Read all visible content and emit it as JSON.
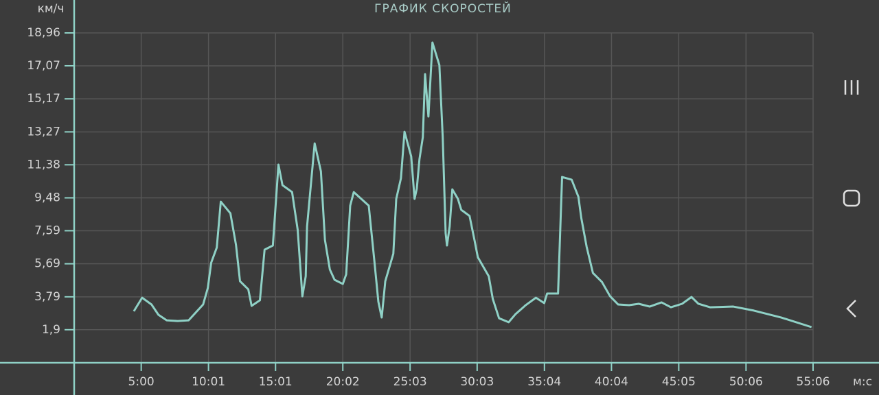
{
  "chart_data": {
    "type": "line",
    "title": "ГРАФИК СКОРОСТЕЙ",
    "y_label": "км/ч",
    "x_label": "м:с",
    "color": "#8fd1c6",
    "grid": true,
    "xlim": [
      0,
      3306
    ],
    "ylim": [
      0,
      18.96
    ],
    "xticks": [
      {
        "value": 300,
        "label": "5:00"
      },
      {
        "value": 601,
        "label": "10:01"
      },
      {
        "value": 901,
        "label": "15:01"
      },
      {
        "value": 1202,
        "label": "20:02"
      },
      {
        "value": 1503,
        "label": "25:03"
      },
      {
        "value": 1803,
        "label": "30:03"
      },
      {
        "value": 2104,
        "label": "35:04"
      },
      {
        "value": 2404,
        "label": "40:04"
      },
      {
        "value": 2705,
        "label": "45:05"
      },
      {
        "value": 3006,
        "label": "50:06"
      },
      {
        "value": 3306,
        "label": "55:06"
      }
    ],
    "yticks": [
      {
        "value": 1.9,
        "label": "1,9"
      },
      {
        "value": 3.79,
        "label": "3,79"
      },
      {
        "value": 5.69,
        "label": "5,69"
      },
      {
        "value": 7.59,
        "label": "7,59"
      },
      {
        "value": 9.48,
        "label": "9,48"
      },
      {
        "value": 11.38,
        "label": "11,38"
      },
      {
        "value": 13.27,
        "label": "13,27"
      },
      {
        "value": 15.17,
        "label": "15,17"
      },
      {
        "value": 17.07,
        "label": "17,07"
      },
      {
        "value": 18.96,
        "label": "18,96"
      }
    ],
    "x": [
      267,
      304,
      346,
      377,
      414,
      463,
      512,
      577,
      598,
      613,
      638,
      656,
      699,
      724,
      742,
      779,
      794,
      831,
      852,
      889,
      914,
      932,
      975,
      1000,
      1021,
      1036,
      1042,
      1076,
      1104,
      1122,
      1144,
      1165,
      1202,
      1217,
      1235,
      1251,
      1318,
      1343,
      1361,
      1376,
      1392,
      1428,
      1441,
      1462,
      1478,
      1508,
      1523,
      1533,
      1545,
      1560,
      1570,
      1585,
      1603,
      1634,
      1649,
      1662,
      1668,
      1680,
      1692,
      1717,
      1732,
      1769,
      1791,
      1806,
      1855,
      1873,
      1901,
      1944,
      1975,
      2020,
      2066,
      2103,
      2116,
      2165,
      2183,
      2226,
      2256,
      2269,
      2293,
      2321,
      2361,
      2398,
      2434,
      2483,
      2526,
      2575,
      2628,
      2670,
      2720,
      2762,
      2793,
      2845,
      2949,
      3041,
      3164,
      3299
    ],
    "values": [
      2.96,
      3.74,
      3.35,
      2.76,
      2.44,
      2.4,
      2.44,
      3.35,
      4.3,
      5.75,
      6.62,
      9.26,
      8.59,
      6.78,
      4.69,
      4.22,
      3.27,
      3.59,
      6.5,
      6.74,
      11.39,
      10.21,
      9.81,
      7.65,
      3.82,
      4.97,
      7.84,
      12.61,
      11.0,
      7.06,
      5.36,
      4.77,
      4.53,
      5.08,
      9.03,
      9.81,
      9.03,
      5.87,
      3.51,
      2.6,
      4.69,
      6.27,
      9.42,
      10.6,
      13.28,
      11.86,
      9.42,
      10.01,
      11.71,
      12.97,
      16.59,
      14.15,
      18.41,
      17.11,
      12.97,
      7.45,
      6.74,
      7.84,
      9.97,
      9.42,
      8.79,
      8.44,
      7.06,
      6.07,
      4.97,
      3.67,
      2.56,
      2.33,
      2.8,
      3.31,
      3.74,
      3.43,
      3.98,
      3.98,
      10.68,
      10.52,
      9.54,
      8.32,
      6.66,
      5.16,
      4.65,
      3.82,
      3.35,
      3.31,
      3.39,
      3.23,
      3.47,
      3.19,
      3.39,
      3.78,
      3.39,
      3.19,
      3.23,
      3.0,
      2.6,
      2.05
    ]
  }
}
